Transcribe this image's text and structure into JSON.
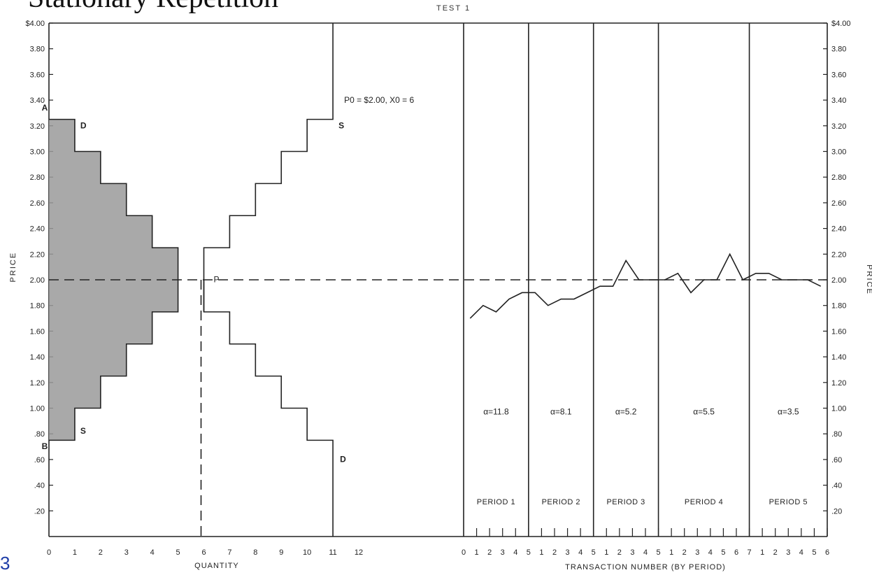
{
  "heading": "Stationary Repetition",
  "subheading": "TEST 1",
  "slide_number": "3",
  "chart_data": [
    {
      "type": "step",
      "ylabel": "PRICE",
      "xlabel": "QUANTITY",
      "ylim": [
        0,
        4.0
      ],
      "xlim": [
        0,
        13
      ],
      "y_ticks": [
        "$4.00",
        "3.80",
        "3.60",
        "3.40",
        "3.20",
        "3.00",
        "2.80",
        "2.60",
        "2.40",
        "2.20",
        "2.00",
        "1.80",
        "1.60",
        "1.40",
        "1.20",
        "1.00",
        ".80",
        ".60",
        ".40",
        ".20"
      ],
      "x_ticks": [
        "0",
        "1",
        "2",
        "3",
        "4",
        "5",
        "6",
        "7",
        "8",
        "9",
        "10",
        "11",
        "12"
      ],
      "annotation": "P",
      "equilibrium_label": "P0 = $2.00, X0 = 6",
      "equilibrium_price": 2.0,
      "equilibrium_quantity": 6,
      "label_A": "A",
      "label_B": "B",
      "series": [
        {
          "name": "D",
          "label_left": "D",
          "label_right": "D",
          "values": [
            3.25,
            3.0,
            2.75,
            2.5,
            2.25,
            2.0,
            1.75,
            1.5,
            1.25,
            1.0,
            0.75
          ]
        },
        {
          "name": "S",
          "label_left": "S",
          "label_right": "S",
          "values": [
            0.75,
            1.0,
            1.25,
            1.5,
            1.75,
            2.0,
            2.25,
            2.5,
            2.75,
            3.0,
            3.25
          ]
        }
      ]
    },
    {
      "type": "line",
      "xlabel": "TRANSACTION NUMBER (BY PERIOD)",
      "ylabel": "PRICE",
      "ylim": [
        0,
        4.0
      ],
      "y_ticks": [
        "$4.00",
        "3.80",
        "3.60",
        "3.40",
        "3.20",
        "3.00",
        "2.80",
        "2.60",
        "2.40",
        "2.20",
        "2.00",
        "1.80",
        "1.60",
        "1.40",
        "1.20",
        "1.00",
        ".80",
        ".60",
        ".40",
        ".20"
      ],
      "x_ticks": [
        "0",
        "1",
        "2",
        "3",
        "4",
        "5",
        "1",
        "2",
        "3",
        "4",
        "5",
        "1",
        "2",
        "3",
        "4",
        "5",
        "1",
        "2",
        "3",
        "4",
        "5",
        "6",
        "7",
        "1",
        "2",
        "3",
        "4",
        "5",
        "6"
      ],
      "periods": [
        {
          "label": "PERIOD 1",
          "alpha": "α=11.8",
          "values": [
            1.7,
            1.8,
            1.75,
            1.85,
            1.9
          ]
        },
        {
          "label": "PERIOD 2",
          "alpha": "α=8.1",
          "values": [
            1.9,
            1.8,
            1.85,
            1.85,
            1.9
          ]
        },
        {
          "label": "PERIOD 3",
          "alpha": "α=5.2",
          "values": [
            1.95,
            1.95,
            2.15,
            2.0,
            2.0
          ]
        },
        {
          "label": "PERIOD 4",
          "alpha": "α=5.5",
          "values": [
            2.0,
            2.05,
            1.9,
            2.0,
            2.0,
            2.2,
            2.0
          ]
        },
        {
          "label": "PERIOD 5",
          "alpha": "α=3.5",
          "values": [
            2.05,
            2.05,
            2.0,
            2.0,
            2.0,
            1.95
          ]
        }
      ]
    }
  ]
}
